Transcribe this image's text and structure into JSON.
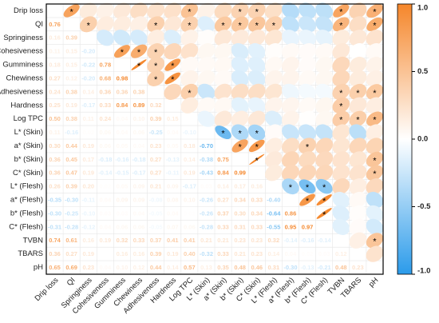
{
  "chart_data": {
    "type": "corrplot",
    "variables": [
      "Drip loss",
      "QI",
      "Springiness",
      "Cohesiveness",
      "Gumminess",
      "Chewiness",
      "Adhesiveness",
      "Hardness",
      "Log TPC",
      "L* (Skin)",
      "a* (Skin)",
      "b* (Skin)",
      "C* (Skin)",
      "L* (Flesh)",
      "a* (Flesh)",
      "b* (Flesh)",
      "C* (Flesh)",
      "TVBN",
      "TBARS",
      "pH"
    ],
    "values": [
      [
        0.76
      ],
      [
        0.16,
        0.39
      ],
      [
        0.11,
        0.15,
        -0.2
      ],
      [
        0.18,
        0.15,
        -0.22,
        0.78
      ],
      [
        0.27,
        0.12,
        -0.2,
        0.68,
        0.98
      ],
      [
        0.24,
        0.38,
        0.14,
        0.36,
        0.36,
        0.38
      ],
      [
        0.25,
        0.19,
        -0.17,
        0.33,
        0.84,
        0.89,
        0.32
      ],
      [
        0.5,
        0.38,
        0.11,
        0.24,
        0.04,
        0.1,
        0.39,
        0.15
      ],
      [
        0.11,
        -0.16,
        0.02,
        0.06,
        0.04,
        0.06,
        -0.25,
        0.04,
        -0.1
      ],
      [
        0.3,
        0.44,
        0.19,
        0.06,
        0.05,
        0.04,
        0.23,
        0.05,
        0.18,
        -0.7
      ],
      [
        0.36,
        0.45,
        0.17,
        -0.18,
        -0.16,
        -0.18,
        0.27,
        -0.13,
        0.14,
        -0.38,
        0.75
      ],
      [
        0.36,
        0.47,
        0.19,
        -0.14,
        -0.15,
        -0.17,
        0.27,
        -0.11,
        0.19,
        -0.43,
        0.84,
        0.99
      ],
      [
        0.26,
        0.39,
        0.2,
        0.02,
        0.05,
        0.09,
        0.21,
        0.09,
        -0.17,
        0.03,
        0.14,
        0.17,
        0.16
      ],
      [
        -0.35,
        -0.3,
        -0.11,
        0.04,
        0.09,
        0.09,
        -0.08,
        0.08,
        0.1,
        -0.26,
        0.27,
        0.34,
        0.33,
        -0.4
      ],
      [
        -0.3,
        -0.25,
        -0.1,
        0.03,
        0.03,
        0.04,
        -0.05,
        0.04,
        0.01,
        -0.26,
        0.37,
        0.3,
        0.34,
        -0.64,
        0.86
      ],
      [
        -0.31,
        -0.28,
        -0.12,
        0.04,
        0.06,
        0.06,
        -0.05,
        0.07,
        0.06,
        -0.28,
        0.33,
        0.31,
        0.33,
        -0.55,
        0.95,
        0.97
      ],
      [
        0.74,
        0.61,
        0.16,
        0.19,
        0.32,
        0.33,
        0.37,
        0.41,
        0.41,
        0.21,
        0.21,
        0.23,
        0.23,
        0.32,
        -0.14,
        -0.16,
        -0.14
      ],
      [
        0.36,
        0.27,
        0.19,
        0.0,
        0.16,
        0.16,
        0.39,
        0.19,
        0.4,
        -0.32,
        0.33,
        0.21,
        0.23,
        0.14,
        0.04,
        0.02,
        0.03,
        0.12
      ],
      [
        0.65,
        0.69,
        0.23,
        0.04,
        0.1,
        0.12,
        0.44,
        0.14,
        0.57,
        0.13,
        0.35,
        0.48,
        0.46,
        0.31,
        -0.3,
        -0.13,
        -0.21,
        0.48,
        0.23
      ]
    ],
    "value_labels": [
      [
        "0.76"
      ],
      [
        "0.16",
        "0.39"
      ],
      [
        "0.11",
        "0.15",
        "-0.20"
      ],
      [
        "0.18",
        "0.15",
        "-0.22",
        "0.78"
      ],
      [
        "0.27",
        "0.12",
        "-0.20",
        "0.68",
        "0.98"
      ],
      [
        "0.24",
        "0.38",
        "0.14",
        "0.36",
        "0.36",
        "0.38"
      ],
      [
        "0.25",
        "0.19",
        "-0.17",
        "0.33",
        "0.84",
        "0.89",
        "0.32"
      ],
      [
        "0.50",
        "0.38",
        "0.11",
        "0.24",
        "0.04",
        "0.10",
        "0.39",
        "0.15"
      ],
      [
        "0.11",
        "-0.16",
        "0.02",
        "0.06",
        "0.04",
        "0.06",
        "-0.25",
        "0.04",
        "-0.10"
      ],
      [
        "0.30",
        "0.44",
        "0.19",
        "0.06",
        "0.05",
        "0.04",
        "0.23",
        "0.05",
        "0.18",
        "-0.70"
      ],
      [
        "0.36",
        "0.45",
        "0.17",
        "-0.18",
        "-0.16",
        "-0.18",
        "0.27",
        "-0.13",
        "0.14",
        "-0.38",
        "0.75"
      ],
      [
        "0.36",
        "0.47",
        "0.19",
        "-0.14",
        "-0.15",
        "-0.17",
        "0.27",
        "-0.11",
        "0.19",
        "-0.43",
        "0.84",
        "0.99"
      ],
      [
        "0.26",
        "0.39",
        "0.20",
        "0.02",
        "0.05",
        "0.09",
        "0.21",
        "0.09",
        "-0.17",
        "0.03",
        "0.14",
        "0.17",
        "0.16"
      ],
      [
        "-0.35",
        "-0.30",
        "-0.11",
        "0.04",
        "0.09",
        "0.09",
        "-0.08",
        "0.08",
        "0.10",
        "-0.26",
        "0.27",
        "0.34",
        "0.33",
        "-0.40"
      ],
      [
        "-0.30",
        "-0.25",
        "-0.10",
        "0.03",
        "0.03",
        "0.04",
        "-0.05",
        "0.04",
        "0.01",
        "-0.26",
        "0.37",
        "0.30",
        "0.34",
        "-0.64",
        "0.86"
      ],
      [
        "-0.31",
        "-0.28",
        "-0.12",
        "0.04",
        "0.06",
        "0.06",
        "-0.05",
        "0.07",
        "0.06",
        "-0.28",
        "0.33",
        "0.31",
        "0.33",
        "-0.55",
        "0.95",
        "0.97"
      ],
      [
        "0.74",
        "0.61",
        "0.16",
        "0.19",
        "0.32",
        "0.33",
        "0.37",
        "0.41",
        "0.41",
        "0.21",
        "0.21",
        "0.23",
        "0.23",
        "0.32",
        "-0.14",
        "-0.16",
        "-0.14"
      ],
      [
        "0.36",
        "0.27",
        "0.19",
        "0.00",
        "0.16",
        "0.16",
        "0.39",
        "0.19",
        "0.40",
        "-0.32",
        "0.33",
        "0.21",
        "0.23",
        "0.14",
        "0.04",
        "0.02",
        "0.03",
        "0.12"
      ],
      [
        "0.65",
        "0.69",
        "0.23",
        "0.04",
        "0.10",
        "0.12",
        "0.44",
        "0.14",
        "0.57",
        "0.13",
        "0.35",
        "0.48",
        "0.46",
        "0.31",
        "-0.30",
        "-0.13",
        "-0.21",
        "0.48",
        "0.23"
      ]
    ],
    "significant": [
      [
        true
      ],
      [
        false,
        true
      ],
      [
        false,
        false,
        false
      ],
      [
        false,
        false,
        false,
        true
      ],
      [
        false,
        false,
        false,
        true,
        true
      ],
      [
        false,
        true,
        false,
        true,
        true,
        true
      ],
      [
        false,
        false,
        false,
        false,
        true,
        true,
        false
      ],
      [
        true,
        true,
        false,
        false,
        false,
        false,
        true,
        false
      ],
      [
        false,
        false,
        false,
        false,
        false,
        false,
        false,
        false,
        false
      ],
      [
        false,
        true,
        false,
        false,
        false,
        false,
        false,
        false,
        false,
        true
      ],
      [
        true,
        true,
        false,
        false,
        false,
        false,
        false,
        false,
        false,
        true,
        true
      ],
      [
        true,
        true,
        false,
        false,
        false,
        false,
        false,
        false,
        false,
        true,
        true,
        true
      ],
      [
        false,
        true,
        false,
        false,
        false,
        false,
        false,
        false,
        false,
        false,
        false,
        false,
        false
      ],
      [
        false,
        false,
        false,
        false,
        false,
        false,
        false,
        false,
        false,
        false,
        false,
        false,
        false,
        true
      ],
      [
        false,
        false,
        false,
        false,
        false,
        false,
        false,
        false,
        false,
        false,
        true,
        false,
        false,
        true,
        true
      ],
      [
        false,
        false,
        false,
        false,
        false,
        false,
        false,
        false,
        false,
        false,
        false,
        false,
        false,
        true,
        true,
        true
      ],
      [
        true,
        true,
        false,
        false,
        false,
        false,
        true,
        true,
        true,
        false,
        false,
        false,
        false,
        false,
        false,
        false,
        false
      ],
      [
        false,
        false,
        false,
        false,
        false,
        false,
        true,
        false,
        true,
        false,
        false,
        false,
        false,
        false,
        false,
        false,
        false,
        false
      ],
      [
        true,
        true,
        false,
        false,
        false,
        false,
        true,
        false,
        true,
        false,
        false,
        true,
        true,
        false,
        false,
        false,
        false,
        true,
        false
      ]
    ],
    "star": "*",
    "colors": {
      "positive": "#f5862a",
      "negative": "#2b9bea"
    },
    "colorbar_lim": [
      -1,
      1
    ],
    "colorbar_ticks": [
      {
        "value": 1,
        "label": "1.0"
      },
      {
        "value": 0.5,
        "label": "0.5"
      },
      {
        "value": 0,
        "label": "0.0"
      },
      {
        "value": -0.5,
        "label": "-0.5"
      },
      {
        "value": -1,
        "label": "-1.0"
      }
    ]
  }
}
